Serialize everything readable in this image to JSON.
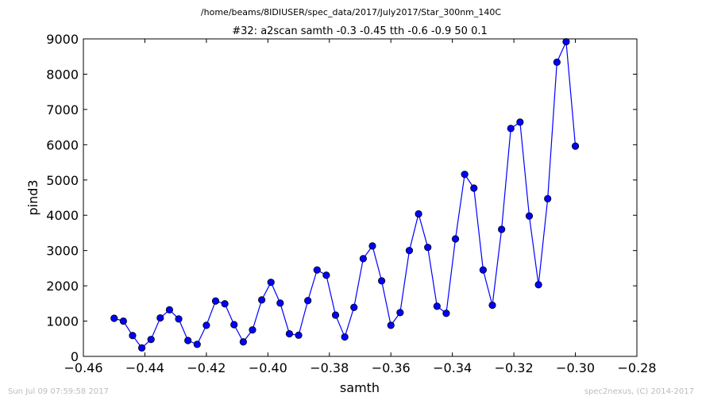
{
  "page": {
    "footer_left": "Sun Jul 09 07:59:58 2017",
    "footer_right": "spec2nexus, (C) 2014-2017"
  },
  "chart_data": {
    "type": "line",
    "suptitle": "/home/beams/8IDIUSER/spec_data/2017/July2017/Star_300nm_140C",
    "title": "#32: a2scan  samth -0.3 -0.45  tth -0.6 -0.9  50 0.1",
    "xlabel": "samth",
    "ylabel": "pind3",
    "xlim": [
      -0.46,
      -0.28
    ],
    "ylim": [
      0,
      9000
    ],
    "x_ticks": [
      -0.46,
      -0.44,
      -0.42,
      -0.4,
      -0.38,
      -0.36,
      -0.34,
      -0.32,
      -0.3,
      -0.28
    ],
    "x_tick_labels": [
      "−0.46",
      "−0.44",
      "−0.42",
      "−0.40",
      "−0.38",
      "−0.36",
      "−0.34",
      "−0.32",
      "−0.30",
      "−0.28"
    ],
    "y_ticks": [
      0,
      1000,
      2000,
      3000,
      4000,
      5000,
      6000,
      7000,
      8000,
      9000
    ],
    "y_tick_labels": [
      "0",
      "1000",
      "2000",
      "3000",
      "4000",
      "5000",
      "6000",
      "7000",
      "8000",
      "9000"
    ],
    "grid": false,
    "line_color": "#0000ff",
    "marker": "circle",
    "series": [
      {
        "x": [
          -0.45,
          -0.447,
          -0.444,
          -0.441,
          -0.438,
          -0.435,
          -0.432,
          -0.429,
          -0.426,
          -0.423,
          -0.42,
          -0.417,
          -0.414,
          -0.411,
          -0.408,
          -0.405,
          -0.402,
          -0.399,
          -0.396,
          -0.393,
          -0.39,
          -0.387,
          -0.384,
          -0.381,
          -0.378,
          -0.375,
          -0.372,
          -0.369,
          -0.366,
          -0.363,
          -0.36,
          -0.357,
          -0.354,
          -0.351,
          -0.348,
          -0.345,
          -0.342,
          -0.339,
          -0.336,
          -0.333,
          -0.33,
          -0.327,
          -0.324,
          -0.321,
          -0.318,
          -0.315,
          -0.312,
          -0.309,
          -0.306,
          -0.303,
          -0.3
        ],
        "y": [
          1080,
          1000,
          590,
          240,
          480,
          1090,
          1320,
          1060,
          450,
          340,
          880,
          1570,
          1490,
          900,
          410,
          750,
          1600,
          2100,
          1510,
          640,
          600,
          1580,
          2450,
          2300,
          1170,
          550,
          1390,
          2770,
          3130,
          2140,
          880,
          1240,
          3000,
          4040,
          3090,
          1420,
          1220,
          3330,
          5160,
          4770,
          2450,
          1450,
          3600,
          6460,
          6640,
          3980,
          2030,
          4470,
          8340,
          8920,
          5960
        ]
      }
    ]
  }
}
